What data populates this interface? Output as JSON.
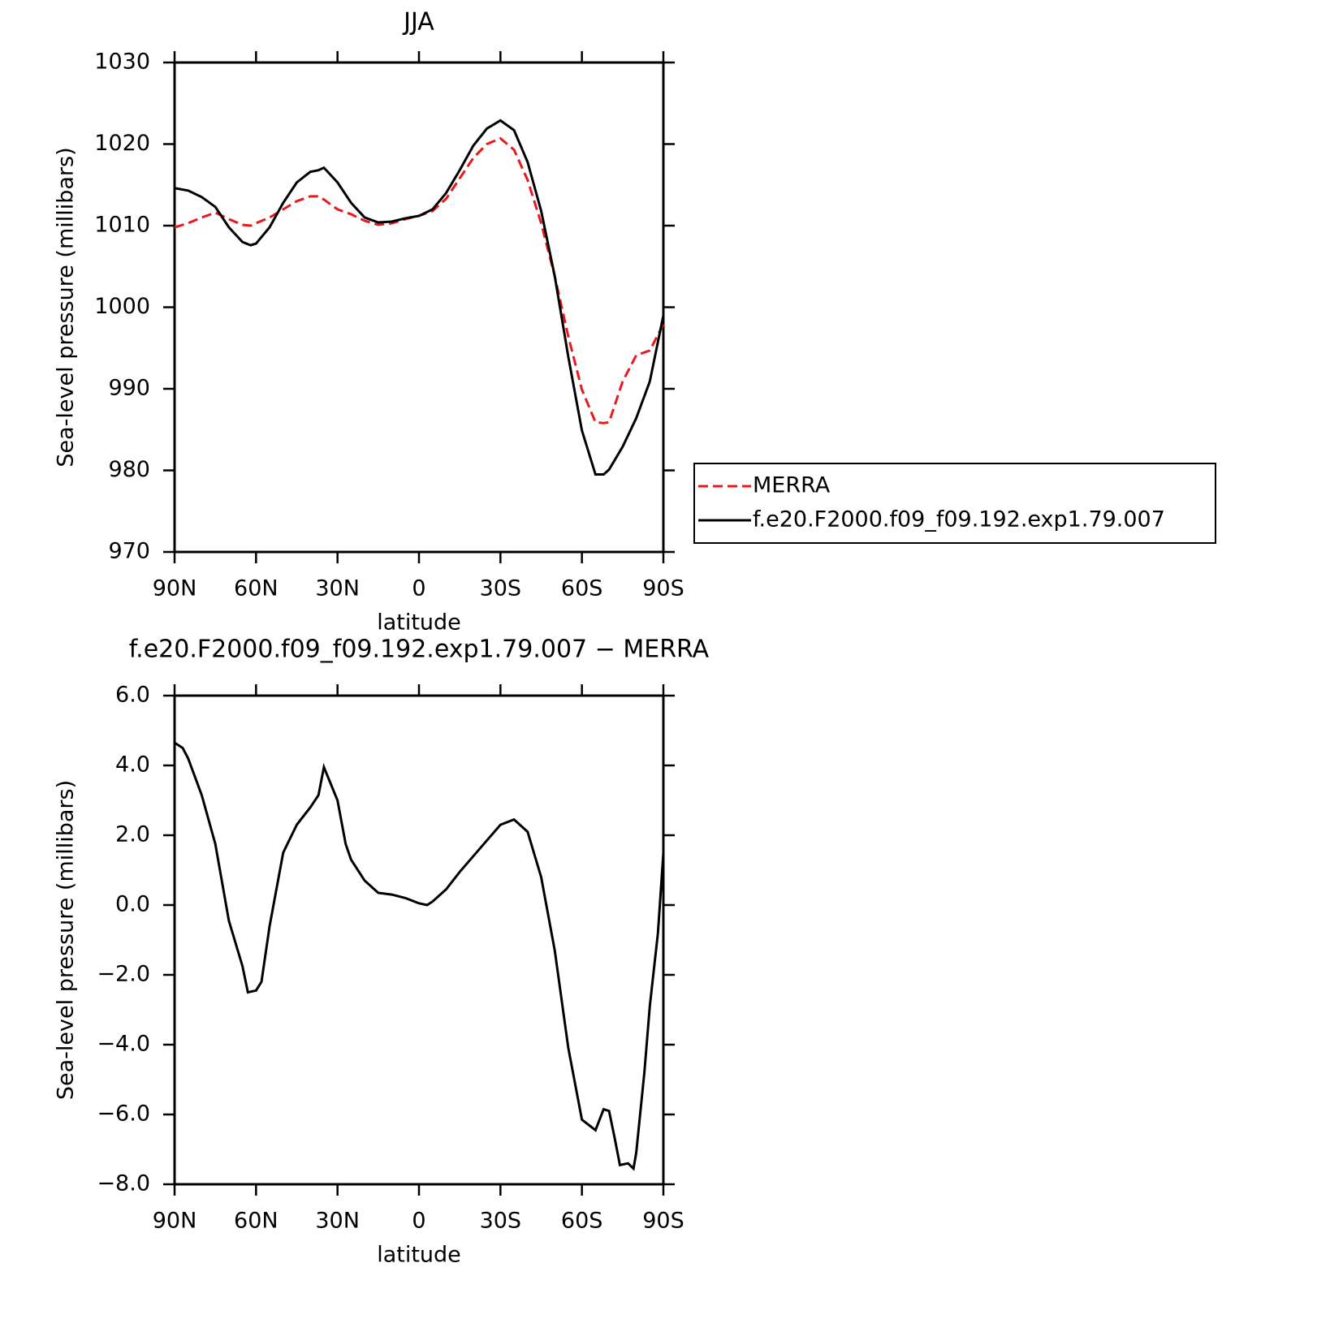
{
  "chart_data": [
    {
      "type": "line",
      "title": "JJA",
      "xlabel": "latitude",
      "ylabel": "Sea-level pressure (millibars)",
      "x": [
        90,
        85,
        80,
        75,
        70,
        65,
        62,
        60,
        55,
        50,
        45,
        40,
        37,
        35,
        30,
        25,
        20,
        15,
        10,
        5,
        0,
        -5,
        -10,
        -15,
        -20,
        -25,
        -30,
        -35,
        -40,
        -45,
        -50,
        -55,
        -60,
        -65,
        -68,
        -70,
        -75,
        -80,
        -85,
        -90
      ],
      "series": [
        {
          "name": "MERRA",
          "color": "#e8191c",
          "dash": true,
          "values": [
            1009.8,
            1010.3,
            1011.0,
            1011.6,
            1010.8,
            1010.1,
            1010.0,
            1010.3,
            1011.0,
            1012.0,
            1013.0,
            1013.6,
            1013.6,
            1013.2,
            1012.0,
            1011.4,
            1010.6,
            1010.1,
            1010.3,
            1010.8,
            1011.2,
            1011.8,
            1013.3,
            1015.8,
            1018.3,
            1020.0,
            1020.7,
            1019.3,
            1015.6,
            1010.3,
            1003.8,
            996.4,
            989.9,
            985.9,
            985.8,
            985.9,
            990.9,
            994.1,
            994.7,
            997.9
          ]
        },
        {
          "name": "f.e20.F2000.f09_f09.192.exp1.79.007",
          "color": "#000000",
          "dash": false,
          "values": [
            1014.6,
            1014.3,
            1013.5,
            1012.3,
            1009.8,
            1008.0,
            1007.6,
            1007.8,
            1009.8,
            1012.8,
            1015.3,
            1016.6,
            1016.8,
            1017.1,
            1015.3,
            1012.8,
            1011.0,
            1010.4,
            1010.5,
            1010.9,
            1011.2,
            1012.0,
            1014.0,
            1016.8,
            1019.8,
            1021.9,
            1022.9,
            1021.7,
            1017.8,
            1011.8,
            1003.8,
            993.9,
            984.9,
            979.5,
            979.5,
            980.1,
            982.9,
            986.4,
            990.9,
            999.0
          ]
        }
      ],
      "xlim": [
        90,
        -90
      ],
      "xticks": [
        {
          "value": 90,
          "label": "90N"
        },
        {
          "value": 60,
          "label": "60N"
        },
        {
          "value": 30,
          "label": "30N"
        },
        0,
        {
          "value": -30,
          "label": "30S"
        },
        {
          "value": -60,
          "label": "60S"
        },
        {
          "value": -90,
          "label": "90S"
        }
      ],
      "ylim": [
        970,
        1030
      ],
      "yticks": [
        970,
        980,
        990,
        1000,
        1010,
        1020,
        1030
      ],
      "legend": "outside-right"
    },
    {
      "type": "line",
      "title": "f.e20.F2000.f09_f09.192.exp1.79.007 − MERRA",
      "xlabel": "latitude",
      "ylabel": "Sea-level pressure (millibars)",
      "x": [
        90,
        87,
        85,
        80,
        75,
        70,
        65,
        63,
        60,
        58,
        55,
        50,
        45,
        40,
        37,
        35,
        30,
        27,
        25,
        20,
        15,
        10,
        5,
        0,
        -3,
        -5,
        -10,
        -15,
        -20,
        -25,
        -30,
        -35,
        -40,
        -45,
        -50,
        -55,
        -60,
        -65,
        -68,
        -70,
        -72,
        -74,
        -77,
        -79,
        -80,
        -83,
        -85,
        -88,
        -90
      ],
      "series": [
        {
          "name": null,
          "color": "#000000",
          "dash": false,
          "values": [
            4.65,
            4.5,
            4.2,
            3.15,
            1.75,
            -0.45,
            -1.75,
            -2.5,
            -2.45,
            -2.2,
            -0.6,
            1.5,
            2.3,
            2.8,
            3.15,
            3.95,
            3.0,
            1.75,
            1.3,
            0.7,
            0.35,
            0.3,
            0.2,
            0.05,
            0.0,
            0.1,
            0.45,
            0.95,
            1.4,
            1.85,
            2.3,
            2.45,
            2.1,
            0.8,
            -1.3,
            -4.1,
            -6.15,
            -6.45,
            -5.85,
            -5.9,
            -6.65,
            -7.45,
            -7.4,
            -7.55,
            -7.1,
            -4.8,
            -2.9,
            -0.8,
            1.5
          ]
        }
      ],
      "xlim": [
        90,
        -90
      ],
      "xticks": [
        {
          "value": 90,
          "label": "90N"
        },
        {
          "value": 60,
          "label": "60N"
        },
        {
          "value": 30,
          "label": "30N"
        },
        0,
        {
          "value": -30,
          "label": "30S"
        },
        {
          "value": -60,
          "label": "60S"
        },
        {
          "value": -90,
          "label": "90S"
        }
      ],
      "ylim": [
        -8,
        6
      ],
      "yticks": [
        {
          "value": -8,
          "label": "−8.0"
        },
        {
          "value": -6,
          "label": "−6.0"
        },
        {
          "value": -4,
          "label": "−4.0"
        },
        {
          "value": -2,
          "label": "−2.0"
        },
        {
          "value": 0,
          "label": "0.0"
        },
        {
          "value": 2,
          "label": "2.0"
        },
        {
          "value": 4,
          "label": "4.0"
        },
        {
          "value": 6,
          "label": "6.0"
        }
      ]
    }
  ]
}
